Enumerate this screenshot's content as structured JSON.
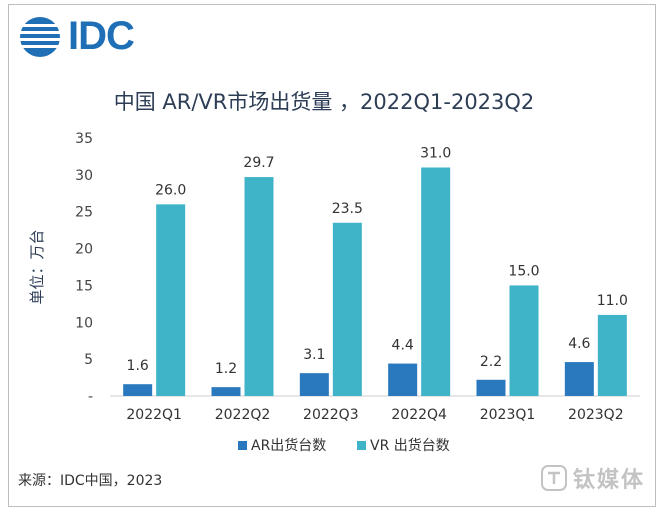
{
  "brand": {
    "name": "IDC",
    "color": "#1f6fb6"
  },
  "title": "中国 AR/VR市场出货量 ，2022Q1-2023Q2",
  "source": "来源：IDC中国，2023",
  "watermark": "钛媒体",
  "chart_data": {
    "type": "bar",
    "title": "中国 AR/VR市场出货量 ，2022Q1-2023Q2",
    "ylabel": "单位：万台",
    "xlabel": "",
    "ylim": [
      0,
      35
    ],
    "yticks": [
      0,
      5,
      10,
      15,
      20,
      25,
      30,
      35
    ],
    "ytick_labels": [
      "-",
      "5",
      "10",
      "15",
      "20",
      "25",
      "30",
      "35"
    ],
    "categories": [
      "2022Q1",
      "2022Q2",
      "2022Q3",
      "2022Q4",
      "2023Q1",
      "2023Q2"
    ],
    "series": [
      {
        "name": "AR出货台数",
        "color": "#2a78bd",
        "values": [
          1.6,
          1.2,
          3.1,
          4.4,
          2.2,
          4.6
        ],
        "labels": [
          "1.6",
          "1.2",
          "3.1",
          "4.4",
          "2.2",
          "4.6"
        ]
      },
      {
        "name": "VR 出货台数",
        "color": "#3fb3c8",
        "values": [
          26.0,
          29.7,
          23.5,
          31.0,
          15.0,
          11.0
        ],
        "labels": [
          "26.0",
          "29.7",
          "23.5",
          "31.0",
          "15.0",
          "11.0"
        ]
      }
    ],
    "legend_position": "bottom",
    "grid": false
  }
}
